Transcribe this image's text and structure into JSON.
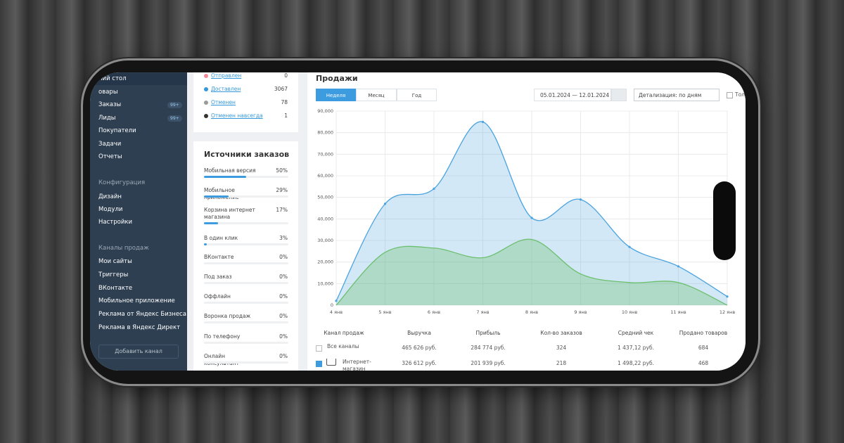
{
  "sidebar": {
    "items": [
      {
        "label": "ний стол",
        "active": true
      },
      {
        "label": "овары"
      },
      {
        "label": "Заказы",
        "badge": "99+"
      },
      {
        "label": "Лиды",
        "badge": "99+"
      },
      {
        "label": "Покупатели"
      },
      {
        "label": "Задачи"
      },
      {
        "label": "Отчеты"
      },
      {
        "label": "Конфигурация",
        "group": true
      },
      {
        "label": "Дизайн"
      },
      {
        "label": "Модули"
      },
      {
        "label": "Настройки"
      },
      {
        "label": "Каналы продаж",
        "group": true
      },
      {
        "label": "Мои сайты"
      },
      {
        "label": "Триггеры"
      },
      {
        "label": "ВКонтакте"
      },
      {
        "label": "Мобильное приложение"
      },
      {
        "label": "Реклама от Яндекс Бизнеса"
      },
      {
        "label": "Реклама в Яндекс Директ"
      }
    ],
    "button": "Добавить канал"
  },
  "statuses": [
    {
      "label": "Отправлен",
      "count": 0,
      "color": "#f08a9a"
    },
    {
      "label": "Доставлен",
      "count": 3067,
      "color": "#3498db"
    },
    {
      "label": "Отменен",
      "count": 78,
      "color": "#9a9a9a"
    },
    {
      "label": "Отменен навсегда",
      "count": 1,
      "color": "#333333"
    }
  ],
  "sources": {
    "title": "Источники заказов",
    "items": [
      {
        "label": "Мобильная версия",
        "value": 50,
        "value_label": "50%"
      },
      {
        "label": "Мобильное приложение",
        "value": 29,
        "value_label": "29%"
      },
      {
        "label": "Корзина интернет магазина",
        "value": 17,
        "value_label": "17%"
      },
      {
        "label": "В один клик",
        "value": 3,
        "value_label": "3%"
      },
      {
        "label": "ВКонтакте",
        "value": 0,
        "value_label": "0%"
      },
      {
        "label": "Под заказ",
        "value": 0,
        "value_label": "0%"
      },
      {
        "label": "Оффлайн",
        "value": 0,
        "value_label": "0%"
      },
      {
        "label": "Воронка продаж",
        "value": 0,
        "value_label": "0%"
      },
      {
        "label": "По телефону",
        "value": 0,
        "value_label": "0%"
      },
      {
        "label": "Онлайн консультант",
        "value": 0,
        "value_label": "0%"
      }
    ]
  },
  "sales": {
    "title": "Продажи",
    "tabs": [
      "Неделя",
      "Месяц",
      "Год"
    ],
    "active_tab": 0,
    "date_range": "05.01.2024 — 12.01.2024",
    "detail": "Детализация: по дням",
    "paid_only": "Только оплаченные"
  },
  "chart_data": {
    "type": "area",
    "categories": [
      "4 янв",
      "5 янв",
      "6 янв",
      "7 янв",
      "8 янв",
      "9 янв",
      "10 янв",
      "11 янв",
      "12 янв"
    ],
    "series": [
      {
        "color": "#4aa3df",
        "values": [
          2000,
          47000,
          54000,
          85000,
          40500,
          49000,
          27000,
          18000,
          4000
        ]
      },
      {
        "color": "#6cbf6c",
        "values": [
          0,
          24500,
          26500,
          22000,
          30500,
          14500,
          10500,
          10500,
          0
        ]
      }
    ],
    "ylim": [
      0,
      90000
    ],
    "yticks": [
      0,
      {
        "value": 10000,
        "label": "10,000"
      },
      {
        "value": 20000,
        "label": "20,000"
      },
      {
        "value": 30000,
        "label": "30,000"
      },
      {
        "value": 40000,
        "label": "40,000"
      },
      {
        "value": 50000,
        "label": "50,000"
      },
      {
        "value": 60000,
        "label": "60,000"
      },
      {
        "value": 70000,
        "label": "70,000"
      },
      {
        "value": 80000,
        "label": "80,000"
      },
      {
        "value": 90000,
        "label": "90,000"
      }
    ],
    "grid": true
  },
  "table": {
    "header": [
      "Канал продаж",
      "Выручка",
      "Прибыль",
      "Кол-во заказов",
      "Средний чек",
      "Продано товаров"
    ],
    "rows": [
      {
        "checked": false,
        "cells": [
          "Все каналы",
          "465 626 руб.",
          "284 774 руб.",
          "324",
          "1 437,12 руб.",
          "684"
        ]
      },
      {
        "checked": true,
        "cells": [
          "Интернет-магазин",
          "326 612 руб.",
          "201 939 руб.",
          "218",
          "1 498,22 руб.",
          "468"
        ]
      }
    ]
  }
}
